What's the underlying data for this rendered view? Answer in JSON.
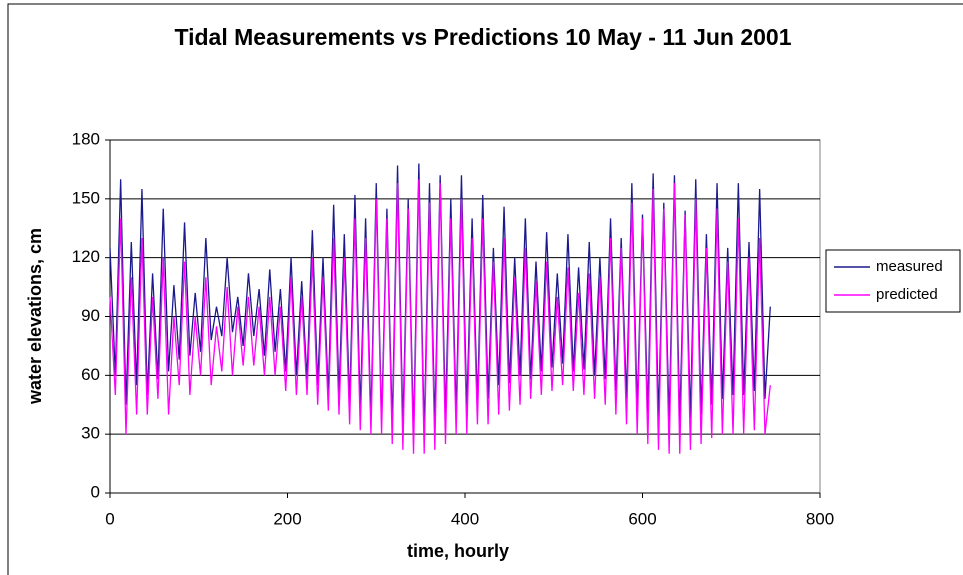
{
  "chart_data": {
    "type": "line",
    "title": "Tidal Measurements vs Predictions 10 May - 11 Jun 2001",
    "x_label": "time, hourly",
    "y_label": "water elevations, cm",
    "xlim": [
      0,
      800
    ],
    "xticks": [
      0,
      200,
      400,
      600,
      800
    ],
    "ylim": [
      0,
      180
    ],
    "yticks": [
      0,
      30,
      60,
      90,
      120,
      150,
      180
    ],
    "grid": true,
    "legend": "right",
    "x": [
      0,
      6,
      12,
      18,
      24,
      30,
      36,
      42,
      48,
      54,
      60,
      66,
      72,
      78,
      84,
      90,
      96,
      102,
      108,
      114,
      120,
      126,
      132,
      138,
      144,
      150,
      156,
      162,
      168,
      174,
      180,
      186,
      192,
      198,
      204,
      210,
      216,
      222,
      228,
      234,
      240,
      246,
      252,
      258,
      264,
      270,
      276,
      282,
      288,
      294,
      300,
      306,
      312,
      318,
      324,
      330,
      336,
      342,
      348,
      354,
      360,
      366,
      372,
      378,
      384,
      390,
      396,
      402,
      408,
      414,
      420,
      426,
      432,
      438,
      444,
      450,
      456,
      462,
      468,
      474,
      480,
      486,
      492,
      498,
      504,
      510,
      516,
      522,
      528,
      534,
      540,
      546,
      552,
      558,
      564,
      570,
      576,
      582,
      588,
      594,
      600,
      606,
      612,
      618,
      624,
      630,
      636,
      642,
      648,
      654,
      660,
      666,
      672,
      678,
      684,
      690,
      696,
      702,
      708,
      714,
      720,
      726,
      732,
      738,
      744
    ],
    "series": [
      {
        "name": "measured",
        "color": "#1a1a8c",
        "values": [
          125,
          60,
          160,
          45,
          128,
          55,
          155,
          50,
          112,
          58,
          145,
          62,
          106,
          68,
          138,
          70,
          102,
          72,
          130,
          78,
          95,
          80,
          120,
          82,
          100,
          75,
          112,
          80,
          104,
          70,
          114,
          72,
          104,
          62,
          120,
          60,
          108,
          58,
          134,
          55,
          120,
          50,
          147,
          50,
          132,
          45,
          152,
          42,
          140,
          38,
          158,
          36,
          145,
          35,
          167,
          34,
          150,
          30,
          168,
          30,
          158,
          35,
          162,
          38,
          150,
          40,
          162,
          42,
          140,
          45,
          152,
          48,
          125,
          55,
          146,
          56,
          120,
          60,
          140,
          58,
          118,
          62,
          133,
          64,
          112,
          66,
          132,
          62,
          115,
          63,
          128,
          60,
          120,
          58,
          140,
          52,
          130,
          48,
          158,
          42,
          142,
          40,
          163,
          38,
          148,
          36,
          162,
          36,
          144,
          38,
          160,
          40,
          132,
          45,
          158,
          48,
          125,
          50,
          158,
          50,
          128,
          52,
          155,
          48,
          95
        ]
      },
      {
        "name": "predicted",
        "color": "#ff00ff",
        "values": [
          100,
          50,
          140,
          30,
          110,
          40,
          130,
          40,
          100,
          48,
          120,
          40,
          90,
          55,
          118,
          50,
          90,
          60,
          110,
          55,
          85,
          62,
          105,
          60,
          95,
          65,
          100,
          65,
          95,
          60,
          100,
          60,
          95,
          52,
          110,
          50,
          100,
          50,
          120,
          45,
          110,
          42,
          130,
          40,
          120,
          35,
          140,
          32,
          130,
          30,
          150,
          30,
          140,
          25,
          158,
          22,
          145,
          20,
          160,
          20,
          148,
          22,
          158,
          25,
          140,
          30,
          150,
          30,
          130,
          35,
          140,
          35,
          118,
          40,
          130,
          42,
          110,
          45,
          125,
          48,
          108,
          50,
          118,
          52,
          100,
          55,
          115,
          52,
          102,
          50,
          112,
          48,
          110,
          45,
          130,
          40,
          125,
          35,
          148,
          30,
          140,
          25,
          155,
          22,
          145,
          20,
          158,
          20,
          142,
          22,
          150,
          25,
          125,
          28,
          145,
          30,
          118,
          30,
          140,
          30,
          120,
          32,
          130,
          30,
          55
        ]
      }
    ]
  }
}
